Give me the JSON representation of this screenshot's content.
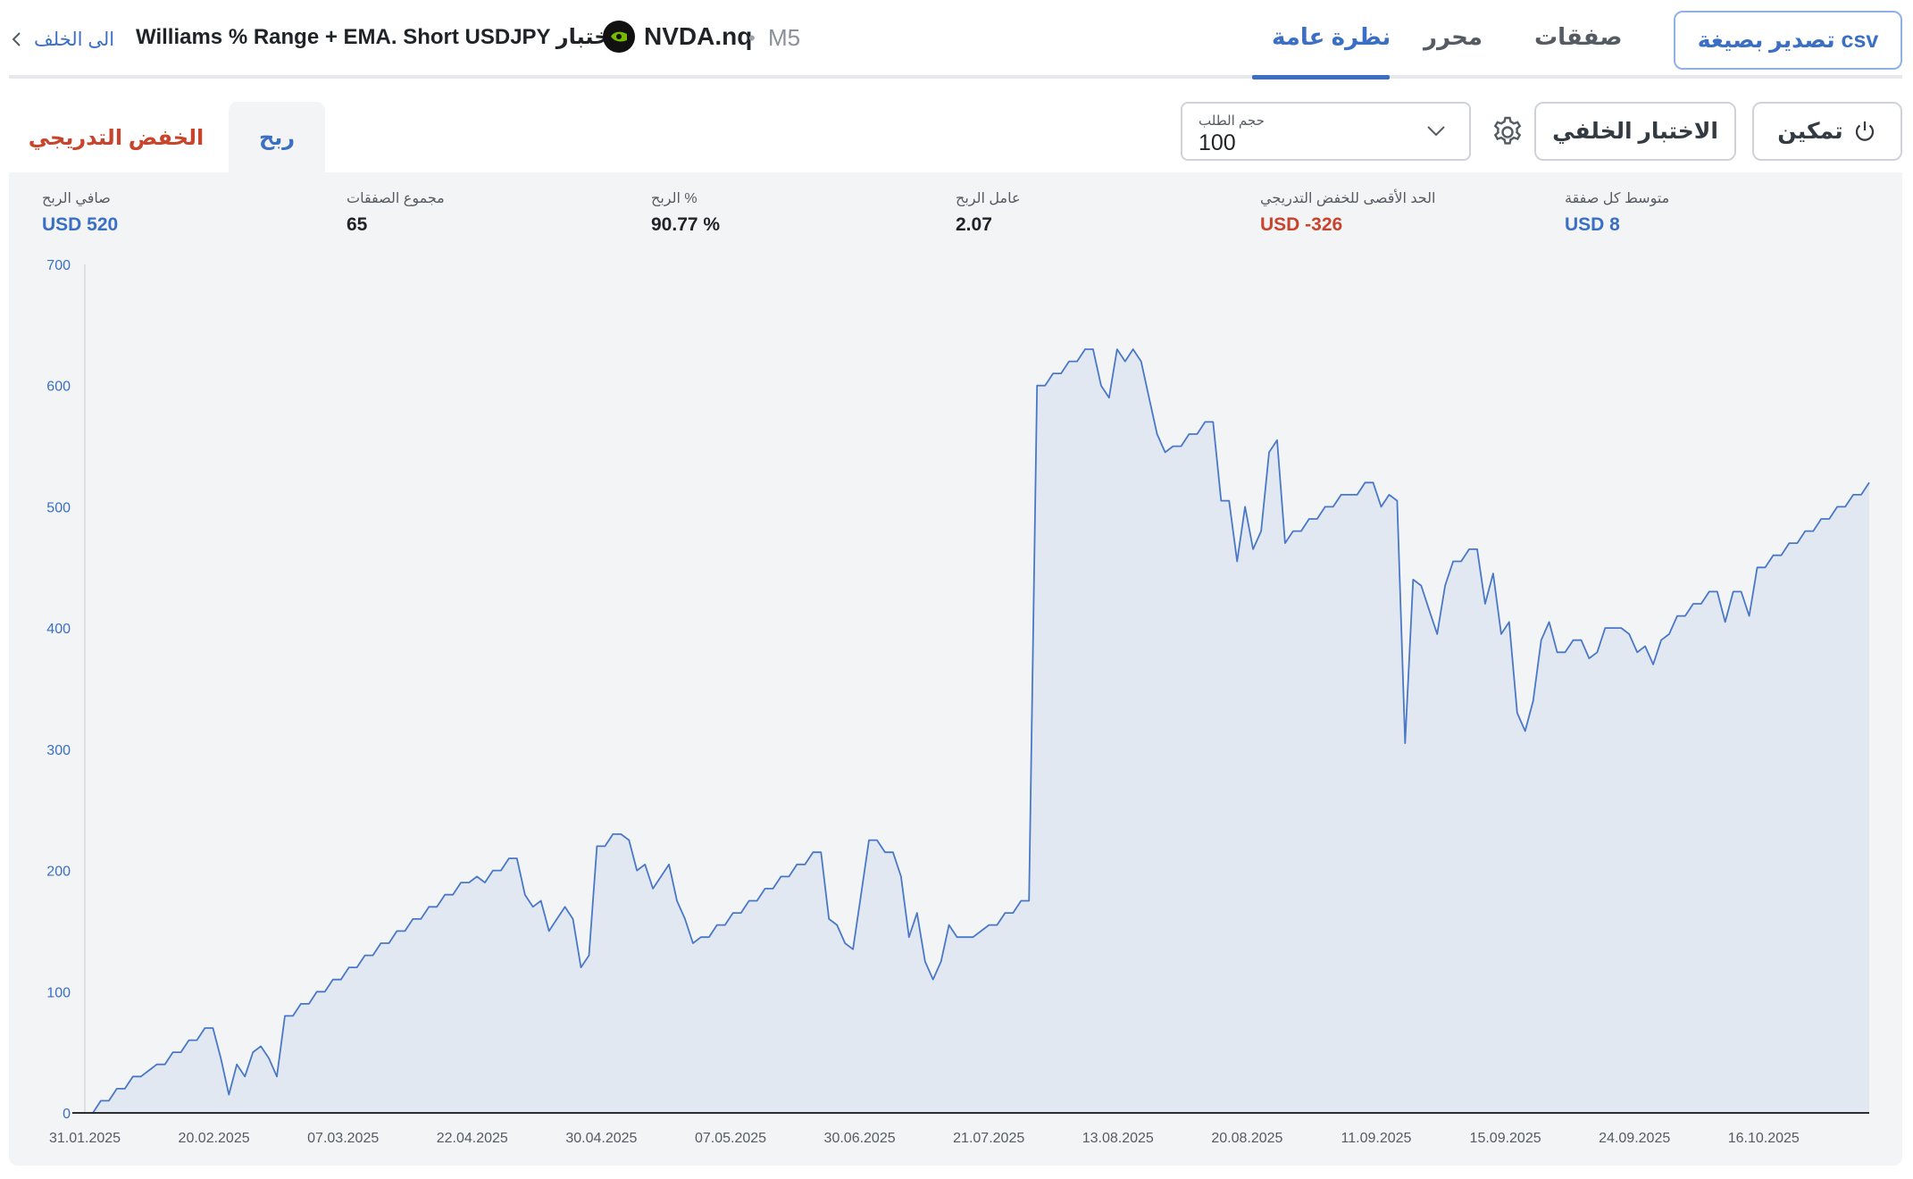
{
  "header": {
    "back_label": "الى الخلف",
    "title": "Williams % Range + EMA. Short USDJPY لاختبار",
    "symbol": "NVDA.nq",
    "symbol_icon": "nvidia-logo-icon",
    "separator": "•",
    "timeframe": "M5",
    "tabs": [
      {
        "label": "نظرة عامة",
        "active": true
      },
      {
        "label": "محرر",
        "active": false
      },
      {
        "label": "صفقات",
        "active": false
      }
    ],
    "export_button": "تصدير بصيغة csv"
  },
  "toolbar": {
    "order_size_label": "حجم الطلب",
    "order_size_value": "100",
    "settings_icon": "gear-icon",
    "backtest_button": "الاختبار الخلفي",
    "enable_button": "تمكين",
    "enable_icon": "power-icon",
    "subtabs": [
      {
        "label": "ربح",
        "active": true,
        "color": "#3a6fc4"
      },
      {
        "label": "الخفض التدريجي",
        "active": false,
        "color": "#c8442c"
      }
    ]
  },
  "stats": [
    {
      "label": "صافي الربح",
      "value": "USD 520",
      "color": "#3a6fc4"
    },
    {
      "label": "مجموع الصفقات",
      "value": "65",
      "color": "#1f2328"
    },
    {
      "label": "الربح %",
      "value": "90.77 %",
      "color": "#1f2328"
    },
    {
      "label": "عامل الربح",
      "value": "2.07",
      "color": "#1f2328"
    },
    {
      "label": "الحد الأقصى للخفض التدريجي",
      "value": "USD -326",
      "color": "#c8442c"
    },
    {
      "label": "متوسط كل صفقة",
      "value": "USD 8",
      "color": "#3a6fc4"
    }
  ],
  "colors": {
    "accent": "#3a6fc4",
    "negative": "#c8442c",
    "line": "#4a78c8",
    "fill": "#e2e8f2"
  },
  "chart_data": {
    "type": "area",
    "ylim": [
      0,
      700
    ],
    "yticks": [
      0,
      100,
      200,
      300,
      400,
      500,
      600,
      700
    ],
    "xticks": [
      "31.01.2025",
      "20.02.2025",
      "07.03.2025",
      "22.04.2025",
      "30.04.2025",
      "07.05.2025",
      "30.06.2025",
      "21.07.2025",
      "13.08.2025",
      "20.08.2025",
      "11.09.2025",
      "15.09.2025",
      "24.09.2025",
      "16.10.2025"
    ],
    "series": [
      {
        "values": [
          0,
          0,
          10,
          10,
          20,
          20,
          30,
          30,
          35,
          40,
          40,
          50,
          50,
          60,
          60,
          70,
          70,
          45,
          15,
          40,
          30,
          50,
          55,
          45,
          30,
          80,
          80,
          90,
          90,
          100,
          100,
          110,
          110,
          120,
          120,
          130,
          130,
          140,
          140,
          150,
          150,
          160,
          160,
          170,
          170,
          180,
          180,
          190,
          190,
          195,
          190,
          200,
          200,
          210,
          210,
          180,
          170,
          175,
          150,
          160,
          170,
          160,
          120,
          130,
          220,
          220,
          230,
          230,
          225,
          200,
          205,
          185,
          195,
          205,
          175,
          160,
          140,
          145,
          145,
          155,
          155,
          165,
          165,
          175,
          175,
          185,
          185,
          195,
          195,
          205,
          205,
          215,
          215,
          160,
          155,
          140,
          135,
          180,
          225,
          225,
          215,
          215,
          195,
          145,
          165,
          125,
          110,
          125,
          155,
          145,
          145,
          145,
          150,
          155,
          155,
          165,
          165,
          175,
          175,
          600,
          600,
          610,
          610,
          620,
          620,
          630,
          630,
          600,
          590,
          630,
          620,
          630,
          620,
          590,
          560,
          545,
          550,
          550,
          560,
          560,
          570,
          570,
          505,
          505,
          455,
          500,
          465,
          480,
          545,
          555,
          470,
          480,
          480,
          490,
          490,
          500,
          500,
          510,
          510,
          510,
          520,
          520,
          500,
          510,
          505,
          305,
          440,
          435,
          415,
          395,
          435,
          455,
          455,
          465,
          465,
          420,
          445,
          395,
          405,
          330,
          315,
          340,
          390,
          405,
          380,
          380,
          390,
          390,
          375,
          380,
          400,
          400,
          400,
          395,
          380,
          385,
          370,
          390,
          395,
          410,
          410,
          420,
          420,
          430,
          430,
          405,
          430,
          430,
          410,
          450,
          450,
          460,
          460,
          470,
          470,
          480,
          480,
          490,
          490,
          500,
          500,
          510,
          510,
          520
        ]
      }
    ],
    "grid": false
  }
}
